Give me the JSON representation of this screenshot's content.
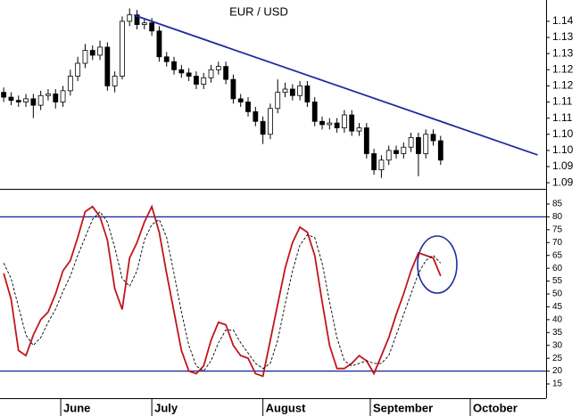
{
  "chart_data": [
    {
      "type": "candlestick",
      "title": "EUR / USD",
      "x": [
        0,
        1,
        2,
        3,
        4,
        5,
        6,
        7,
        8,
        9,
        10,
        11,
        12,
        13,
        14,
        15,
        16,
        17,
        18,
        19,
        20,
        21,
        22,
        23,
        24,
        25,
        26,
        27,
        28,
        29,
        30,
        31,
        32,
        33,
        34,
        35,
        36,
        37,
        38,
        39,
        40,
        41,
        42,
        43,
        44,
        45,
        46,
        47,
        48,
        49,
        50,
        51,
        52,
        53,
        54,
        55,
        56,
        57,
        58,
        59
      ],
      "open": [
        1.118,
        1.1165,
        1.1155,
        1.115,
        1.116,
        1.114,
        1.117,
        1.1175,
        1.115,
        1.1185,
        1.123,
        1.127,
        1.131,
        1.1295,
        1.132,
        1.12,
        1.123,
        1.14,
        1.142,
        1.139,
        1.1395,
        1.137,
        1.129,
        1.1275,
        1.125,
        1.124,
        1.123,
        1.1205,
        1.1225,
        1.125,
        1.126,
        1.122,
        1.116,
        1.115,
        1.112,
        1.109,
        1.105,
        1.113,
        1.118,
        1.119,
        1.117,
        1.12,
        1.115,
        1.109,
        1.108,
        1.1085,
        1.107,
        1.111,
        1.106,
        1.107,
        1.099,
        1.094,
        1.097,
        1.1,
        1.099,
        1.101,
        1.104,
        1.099,
        1.105,
        1.103
      ],
      "high": [
        1.1195,
        1.118,
        1.117,
        1.1175,
        1.1175,
        1.1185,
        1.119,
        1.119,
        1.12,
        1.125,
        1.129,
        1.133,
        1.1325,
        1.134,
        1.1335,
        1.1245,
        1.1415,
        1.144,
        1.1435,
        1.141,
        1.141,
        1.1385,
        1.1305,
        1.129,
        1.1265,
        1.1255,
        1.1245,
        1.124,
        1.1265,
        1.1275,
        1.1275,
        1.1235,
        1.1175,
        1.1165,
        1.1135,
        1.1105,
        1.1145,
        1.122,
        1.121,
        1.1205,
        1.1215,
        1.1215,
        1.1165,
        1.1105,
        1.11,
        1.11,
        1.1125,
        1.1125,
        1.1085,
        1.1085,
        1.1005,
        1.0985,
        1.1015,
        1.1015,
        1.1025,
        1.1055,
        1.1055,
        1.1065,
        1.1065,
        1.1045
      ],
      "low": [
        1.115,
        1.114,
        1.1135,
        1.1135,
        1.11,
        1.1125,
        1.1155,
        1.113,
        1.1135,
        1.117,
        1.1215,
        1.1255,
        1.128,
        1.128,
        1.1185,
        1.118,
        1.122,
        1.1385,
        1.1375,
        1.1375,
        1.1355,
        1.1275,
        1.126,
        1.1235,
        1.1225,
        1.1215,
        1.119,
        1.119,
        1.121,
        1.1235,
        1.1205,
        1.1145,
        1.1135,
        1.1105,
        1.1075,
        1.102,
        1.1035,
        1.1115,
        1.1165,
        1.1155,
        1.1155,
        1.1135,
        1.1075,
        1.1065,
        1.1065,
        1.1055,
        1.1055,
        1.1045,
        1.1045,
        1.0975,
        1.0925,
        1.0915,
        1.0955,
        1.0975,
        1.0975,
        1.0995,
        1.092,
        1.0975,
        1.1015,
        1.0955
      ],
      "close": [
        1.1165,
        1.1155,
        1.115,
        1.116,
        1.114,
        1.117,
        1.1175,
        1.115,
        1.1185,
        1.123,
        1.127,
        1.131,
        1.1295,
        1.132,
        1.12,
        1.123,
        1.14,
        1.142,
        1.139,
        1.1395,
        1.137,
        1.129,
        1.1275,
        1.125,
        1.124,
        1.123,
        1.1205,
        1.1225,
        1.125,
        1.126,
        1.122,
        1.116,
        1.115,
        1.112,
        1.109,
        1.105,
        1.113,
        1.118,
        1.119,
        1.117,
        1.12,
        1.115,
        1.109,
        1.108,
        1.1085,
        1.107,
        1.111,
        1.106,
        1.107,
        1.099,
        1.094,
        1.097,
        1.1,
        1.099,
        1.101,
        1.104,
        1.099,
        1.105,
        1.103,
        1.097
      ],
      "xlim": [
        -0.5,
        73
      ],
      "ylim": [
        1.0881,
        1.1466
      ],
      "yticks": [
        {
          "value": 1.14,
          "label": "1.14"
        },
        {
          "value": 1.135,
          "label": "1.13"
        },
        {
          "value": 1.13,
          "label": "1.13"
        },
        {
          "value": 1.125,
          "label": "1.12"
        },
        {
          "value": 1.12,
          "label": "1.12"
        },
        {
          "value": 1.115,
          "label": "1.11"
        },
        {
          "value": 1.11,
          "label": "1.11"
        },
        {
          "value": 1.105,
          "label": "1.10"
        },
        {
          "value": 1.1,
          "label": "1.10"
        },
        {
          "value": 1.095,
          "label": "1.09"
        },
        {
          "value": 1.09,
          "label": "1.09"
        }
      ],
      "trendline": {
        "x": [
          17.6,
          72.1
        ],
        "y": [
          1.1419,
          1.0986
        ],
        "color": "#1f2d9e"
      }
    },
    {
      "type": "line",
      "x": [
        0,
        1,
        2,
        3,
        4,
        5,
        6,
        7,
        8,
        9,
        10,
        11,
        12,
        13,
        14,
        15,
        16,
        17,
        18,
        19,
        20,
        21,
        22,
        23,
        24,
        25,
        26,
        27,
        28,
        29,
        30,
        31,
        32,
        33,
        34,
        35,
        36,
        37,
        38,
        39,
        40,
        41,
        42,
        43,
        44,
        45,
        46,
        47,
        48,
        49,
        50,
        51,
        52,
        53,
        54,
        55,
        56,
        57,
        58,
        59
      ],
      "series": [
        {
          "color": "#c0161b",
          "values": [
            58,
            48,
            28,
            26,
            34,
            40,
            43,
            50,
            59,
            63,
            72,
            82,
            84,
            80,
            71,
            52,
            44,
            64,
            70,
            78,
            84,
            74,
            58,
            43,
            28,
            20,
            19,
            22,
            32,
            39,
            38,
            30,
            26,
            25,
            19,
            18,
            32,
            46,
            60,
            70,
            76,
            74,
            65,
            47,
            30,
            21,
            21,
            23,
            26,
            24,
            19,
            26,
            33,
            42,
            50,
            59,
            66,
            65,
            64,
            57
          ]
        },
        {
          "color": "#000000",
          "dashed": true,
          "values": [
            62,
            56,
            45,
            34,
            30,
            33,
            39,
            44,
            51,
            57,
            65,
            72,
            79,
            82,
            78,
            68,
            56,
            53,
            59,
            71,
            77,
            79,
            72,
            58,
            43,
            30,
            22,
            20,
            24,
            31,
            36,
            36,
            31,
            27,
            23,
            21,
            23,
            32,
            46,
            59,
            69,
            73,
            72,
            62,
            47,
            33,
            24,
            22,
            23,
            24,
            23,
            23,
            26,
            34,
            42,
            50,
            58,
            63,
            65,
            62
          ]
        }
      ],
      "levels": [
        80,
        20
      ],
      "level_color": "#1f2d9e",
      "xlim": [
        -0.5,
        73
      ],
      "ylim": [
        10.15,
        89.85
      ],
      "yticks": [
        15,
        20,
        25,
        30,
        35,
        40,
        45,
        50,
        55,
        60,
        65,
        70,
        75,
        80,
        85
      ],
      "xticks": [
        {
          "value": 7.7,
          "label": "June"
        },
        {
          "value": 20,
          "label": "July"
        },
        {
          "value": 35,
          "label": "August"
        },
        {
          "value": 49.5,
          "label": "September"
        },
        {
          "value": 63,
          "label": "October"
        }
      ]
    }
  ]
}
